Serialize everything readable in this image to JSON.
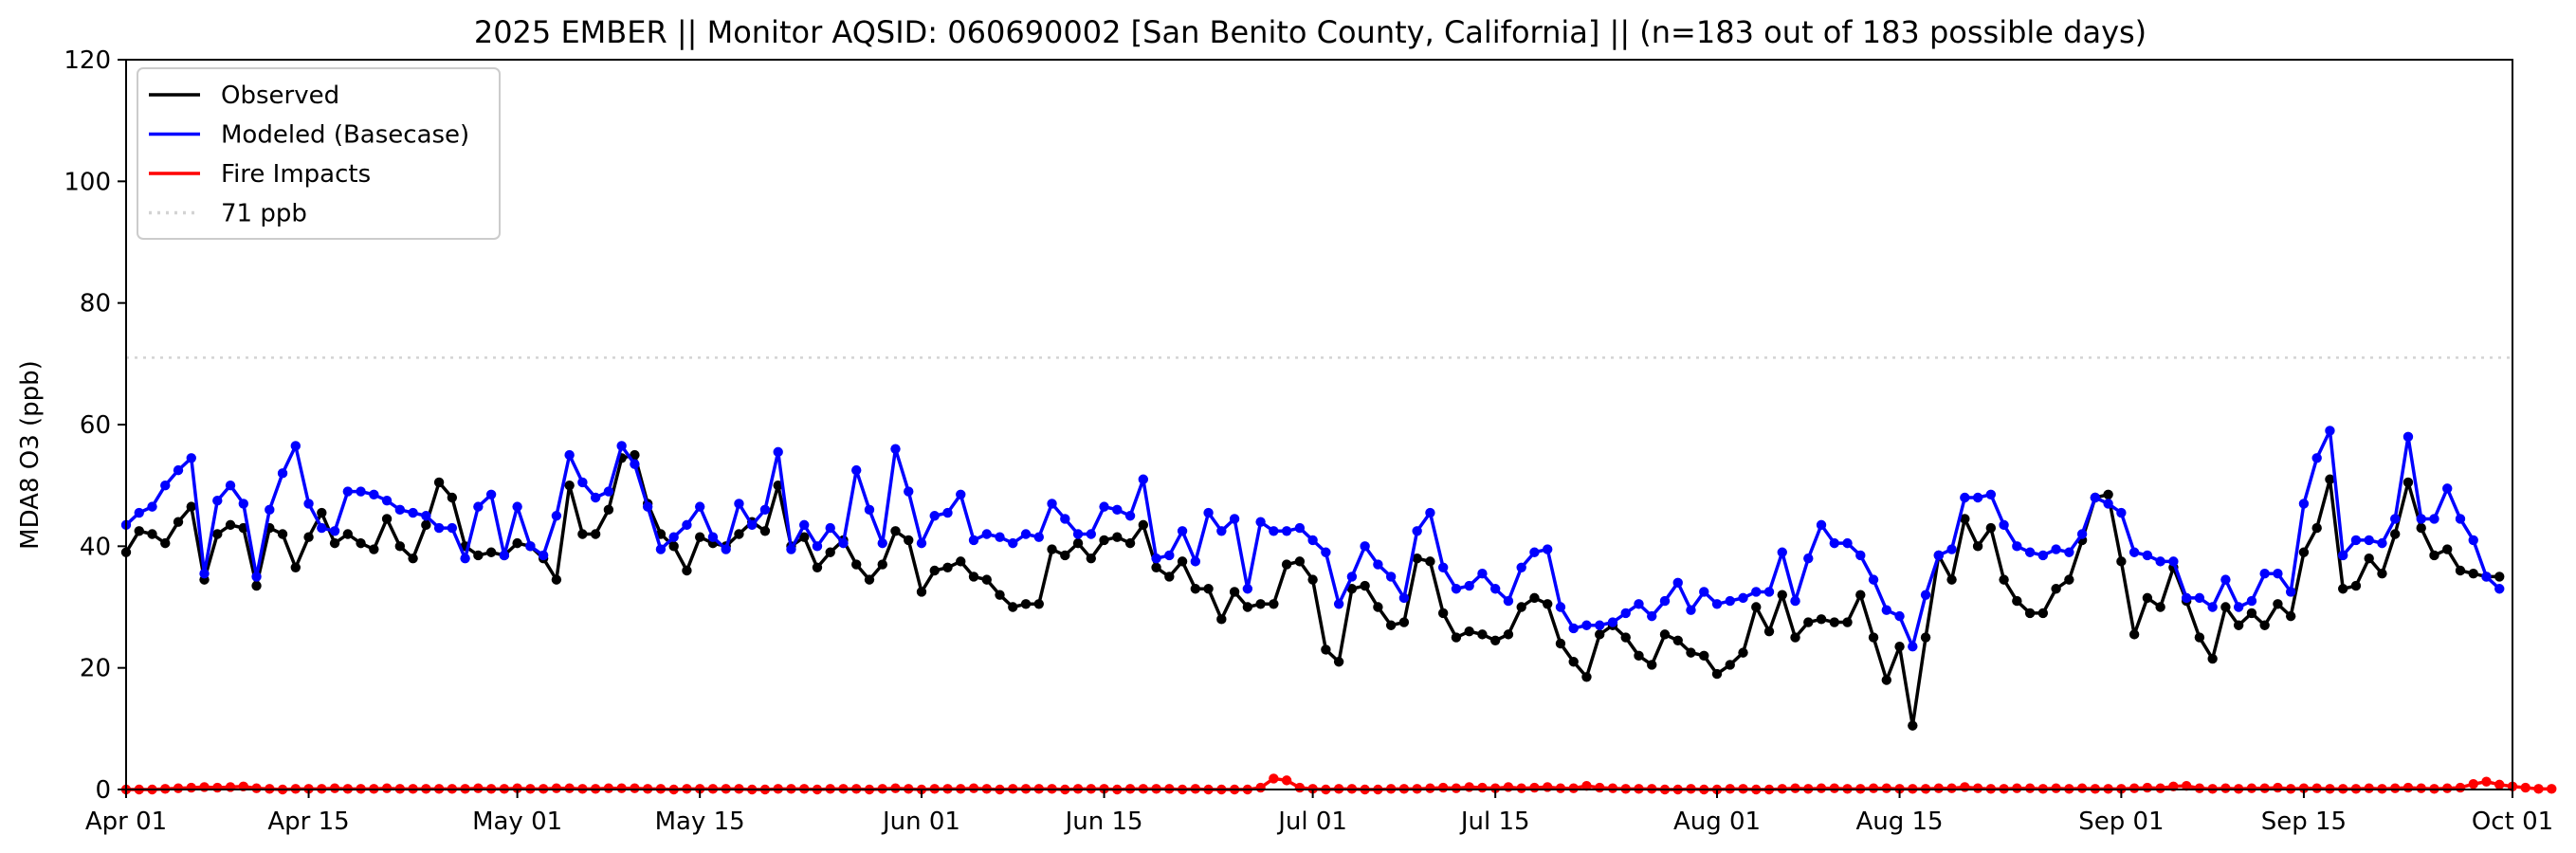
{
  "chart_data": {
    "type": "line",
    "title": "2025 EMBER || Monitor AQSID: 060690002 [San Benito County, California] || (n=183 out of 183 possible days)",
    "ylabel": "MDA8 O3 (ppb)",
    "xlabel": "",
    "ylim": [
      0,
      120
    ],
    "yticks": [
      "0",
      "20",
      "40",
      "60",
      "80",
      "100",
      "120"
    ],
    "xlim": [
      "2025-04-01",
      "2025-10-01"
    ],
    "xticks": [
      {
        "date": "2025-04-01",
        "label": "Apr 01"
      },
      {
        "date": "2025-04-15",
        "label": "Apr 15"
      },
      {
        "date": "2025-05-01",
        "label": "May 01"
      },
      {
        "date": "2025-05-15",
        "label": "May 15"
      },
      {
        "date": "2025-06-01",
        "label": "Jun 01"
      },
      {
        "date": "2025-06-15",
        "label": "Jun 15"
      },
      {
        "date": "2025-07-01",
        "label": "Jul 01"
      },
      {
        "date": "2025-07-15",
        "label": "Jul 15"
      },
      {
        "date": "2025-08-01",
        "label": "Aug 01"
      },
      {
        "date": "2025-08-15",
        "label": "Aug 15"
      },
      {
        "date": "2025-09-01",
        "label": "Sep 01"
      },
      {
        "date": "2025-09-15",
        "label": "Sep 15"
      },
      {
        "date": "2025-10-01",
        "label": "Oct 01"
      }
    ],
    "grid": false,
    "legend_placement": "top-left",
    "start_date": "2025-04-01",
    "threshold": {
      "name": "71 ppb",
      "value": 71,
      "color": "#d3d3d3"
    },
    "series": [
      {
        "name": "Observed",
        "color": "#000000",
        "values": [
          39,
          42.5,
          42,
          40.5,
          44,
          46.5,
          34.5,
          42,
          43.5,
          43,
          33.5,
          43,
          42,
          36.5,
          41.5,
          45.5,
          40.5,
          42,
          40.5,
          39.5,
          44.5,
          40,
          38,
          43.5,
          50.5,
          48,
          40,
          38.5,
          39,
          38.5,
          40.5,
          40,
          38,
          34.5,
          50,
          42,
          42,
          46,
          54.5,
          55,
          47,
          42,
          40,
          36,
          41.5,
          40.5,
          40,
          42,
          44,
          42.5,
          50,
          40,
          41.5,
          36.5,
          39,
          41,
          37,
          34.5,
          37,
          42.5,
          41,
          32.5,
          36,
          36.5,
          37.5,
          35,
          34.5,
          32,
          30,
          30.5,
          30.5,
          39.5,
          38.5,
          40.5,
          38,
          41,
          41.5,
          40.5,
          43.5,
          36.5,
          35,
          37.5,
          33,
          33,
          28,
          32.5,
          30,
          30.5,
          30.5,
          37,
          37.5,
          34.5,
          23,
          21,
          33,
          33.5,
          30,
          27,
          27.5,
          38,
          37.5,
          29,
          25,
          26,
          25.5,
          24.5,
          25.5,
          30,
          31.5,
          30.5,
          24,
          21,
          18.5,
          25.5,
          27,
          25,
          22,
          20.5,
          25.5,
          24.5,
          22.5,
          22,
          19,
          20.5,
          22.5,
          30,
          26,
          32,
          25,
          27.5,
          28,
          27.5,
          27.5,
          32,
          25,
          18,
          23.5,
          10.5,
          25,
          38.5,
          34.5,
          44.5,
          40,
          43,
          34.5,
          31,
          29,
          29,
          33,
          34.5,
          41,
          48,
          48.5,
          37.5,
          25.5,
          31.5,
          30,
          36.5,
          31,
          25,
          21.5,
          30,
          27,
          29,
          27,
          30.5,
          28.5,
          39,
          43,
          51,
          33,
          33.5,
          38,
          35.5,
          42,
          50.5,
          43,
          38.5,
          39.5,
          36,
          35.5,
          35,
          35
        ]
      },
      {
        "name": "Modeled (Basecase)",
        "color": "#0000ff",
        "values": [
          43.5,
          45.5,
          46.5,
          50,
          52.5,
          54.5,
          35.5,
          47.5,
          50,
          47,
          35,
          46,
          52,
          56.5,
          47,
          43,
          42.5,
          49,
          49,
          48.5,
          47.5,
          46,
          45.5,
          45,
          43,
          43,
          38,
          46.5,
          48.5,
          38.5,
          46.5,
          40,
          38.5,
          45,
          55,
          50.5,
          48,
          49,
          56.5,
          53.5,
          46.5,
          39.5,
          41.5,
          43.5,
          46.5,
          41.5,
          39.5,
          47,
          43.5,
          46,
          55.5,
          39.5,
          43.5,
          40,
          43,
          40.5,
          52.5,
          46,
          40.5,
          56,
          49,
          40.5,
          45,
          45.5,
          48.5,
          41,
          42,
          41.5,
          40.5,
          42,
          41.5,
          47,
          44.5,
          42,
          42,
          46.5,
          46,
          45,
          51,
          38,
          38.5,
          42.5,
          37.5,
          45.5,
          42.5,
          44.5,
          33,
          44,
          42.5,
          42.5,
          43,
          41,
          39,
          30.5,
          35,
          40,
          37,
          35,
          31.5,
          42.5,
          45.5,
          36.5,
          33,
          33.5,
          35.5,
          33,
          31,
          36.5,
          39,
          39.5,
          30,
          26.5,
          27,
          27,
          27.5,
          29,
          30.5,
          28.5,
          31,
          34,
          29.5,
          32.5,
          30.5,
          31,
          31.5,
          32.5,
          32.5,
          39,
          31,
          38,
          43.5,
          40.5,
          40.5,
          38.5,
          34.5,
          29.5,
          28.5,
          23.5,
          32,
          38.5,
          39.5,
          48,
          48,
          48.5,
          43.5,
          40,
          39,
          38.5,
          39.5,
          39,
          42,
          48,
          47,
          45.5,
          39,
          38.5,
          37.5,
          37.5,
          31.5,
          31.5,
          30,
          34.5,
          30,
          31,
          35.5,
          35.5,
          32.5,
          47,
          54.5,
          59,
          38.5,
          41,
          41,
          40.5,
          44.5,
          58,
          44.5,
          44.5,
          49.5,
          44.5,
          41,
          35,
          33
        ]
      },
      {
        "name": "Fire Impacts",
        "color": "#ff0000",
        "values": [
          0,
          0,
          0,
          0.1,
          0.2,
          0.3,
          0.4,
          0.3,
          0.4,
          0.5,
          0.2,
          0.1,
          0,
          0.1,
          0.1,
          0.1,
          0.2,
          0.1,
          0.1,
          0.1,
          0.2,
          0.1,
          0.1,
          0.1,
          0.1,
          0.1,
          0.1,
          0.2,
          0.1,
          0.1,
          0.2,
          0.1,
          0.1,
          0.2,
          0.2,
          0.1,
          0.1,
          0.2,
          0.2,
          0.2,
          0.1,
          0.1,
          0,
          0.1,
          0.1,
          0.1,
          0.1,
          0.1,
          0,
          0,
          0.1,
          0.1,
          0.1,
          0,
          0.1,
          0.1,
          0.1,
          0,
          0.1,
          0.2,
          0.1,
          0,
          0.1,
          0.1,
          0.1,
          0.2,
          0.1,
          0,
          0.1,
          0.1,
          0.1,
          0.1,
          0,
          0.1,
          0.1,
          0.1,
          0,
          0.1,
          0.1,
          0.1,
          0.1,
          0,
          0.1,
          0,
          0,
          0,
          0,
          0.3,
          1.8,
          1.5,
          0.3,
          0.1,
          0,
          0.1,
          0.1,
          0,
          0,
          0.1,
          0.1,
          0.1,
          0.2,
          0.3,
          0.2,
          0.4,
          0.3,
          0.2,
          0.4,
          0.2,
          0.3,
          0.4,
          0.2,
          0.2,
          0.6,
          0.3,
          0.2,
          0.1,
          0.1,
          0.1,
          0,
          0,
          0.1,
          0,
          0,
          0.1,
          0.1,
          0,
          0,
          0.1,
          0.2,
          0.1,
          0.2,
          0.2,
          0.1,
          0.1,
          0.2,
          0.2,
          0.1,
          0.1,
          0.1,
          0.2,
          0.2,
          0.4,
          0.2,
          0.1,
          0.1,
          0.2,
          0.2,
          0.1,
          0.2,
          0.1,
          0.2,
          0.1,
          0.1,
          0.1,
          0.2,
          0.3,
          0.2,
          0.5,
          0.6,
          0.2,
          0.1,
          0.2,
          0.1,
          0.2,
          0.2,
          0.3,
          0.1,
          0.2,
          0.2,
          0.1,
          0.1,
          0.1,
          0.2,
          0.1,
          0.2,
          0.3,
          0.2,
          0.1,
          0.2,
          0.3,
          0.9,
          1.3,
          0.8,
          0.5,
          0.3,
          0.1,
          0.1
        ]
      }
    ]
  }
}
